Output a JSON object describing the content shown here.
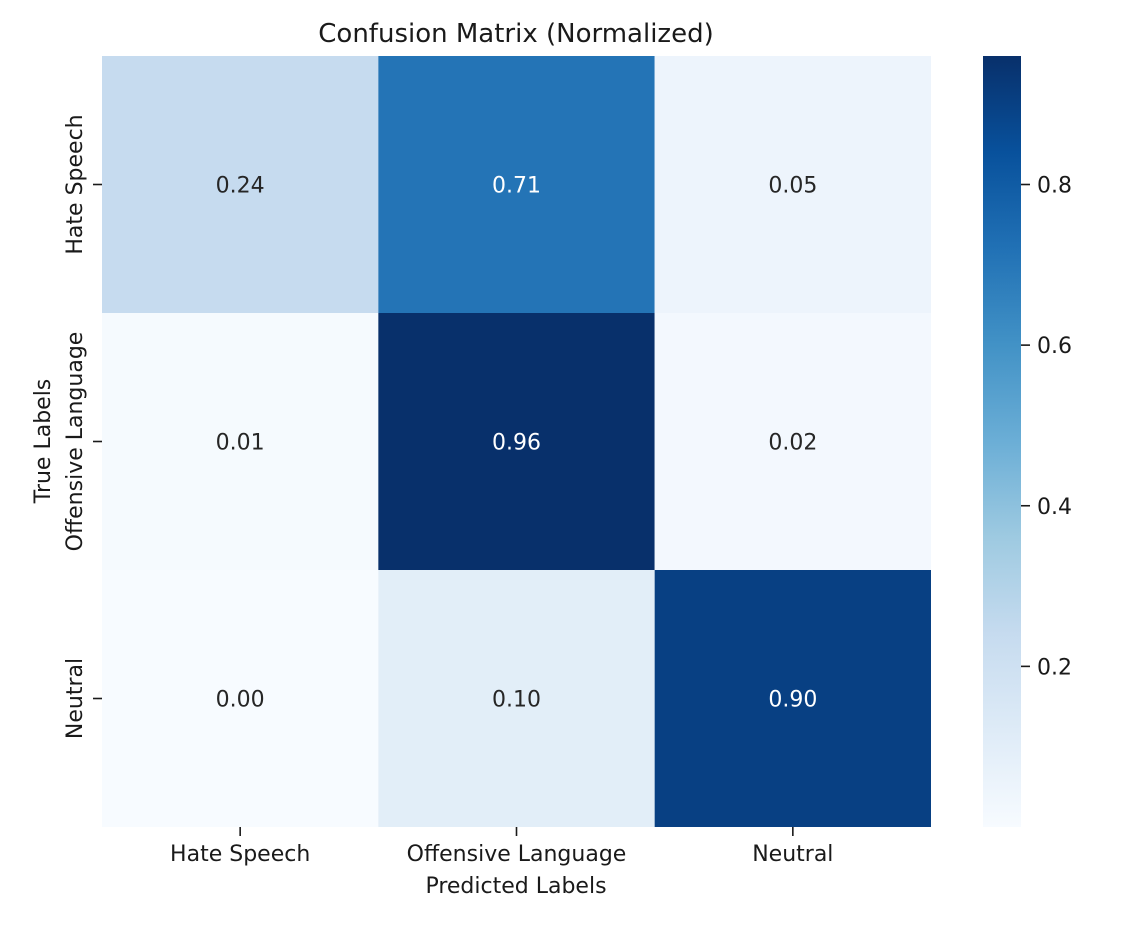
{
  "chart_data": {
    "type": "heatmap",
    "title": "Confusion Matrix (Normalized)",
    "xlabel": "Predicted Labels",
    "ylabel": "True Labels",
    "x_categories": [
      "Hate Speech",
      "Offensive Language",
      "Neutral"
    ],
    "y_categories": [
      "Hate Speech",
      "Offensive Language",
      "Neutral"
    ],
    "values": [
      [
        0.24,
        0.71,
        0.05
      ],
      [
        0.01,
        0.96,
        0.02
      ],
      [
        0.0,
        0.1,
        0.9
      ]
    ],
    "cell_labels": [
      [
        "0.24",
        "0.71",
        "0.05"
      ],
      [
        "0.01",
        "0.96",
        "0.02"
      ],
      [
        "0.00",
        "0.10",
        "0.90"
      ]
    ],
    "colormap": "Blues",
    "colorbar": {
      "range": [
        0.0,
        0.96
      ],
      "ticks": [
        0.2,
        0.4,
        0.6,
        0.8
      ],
      "tick_labels": [
        "0.2",
        "0.4",
        "0.6",
        "0.8"
      ]
    }
  }
}
